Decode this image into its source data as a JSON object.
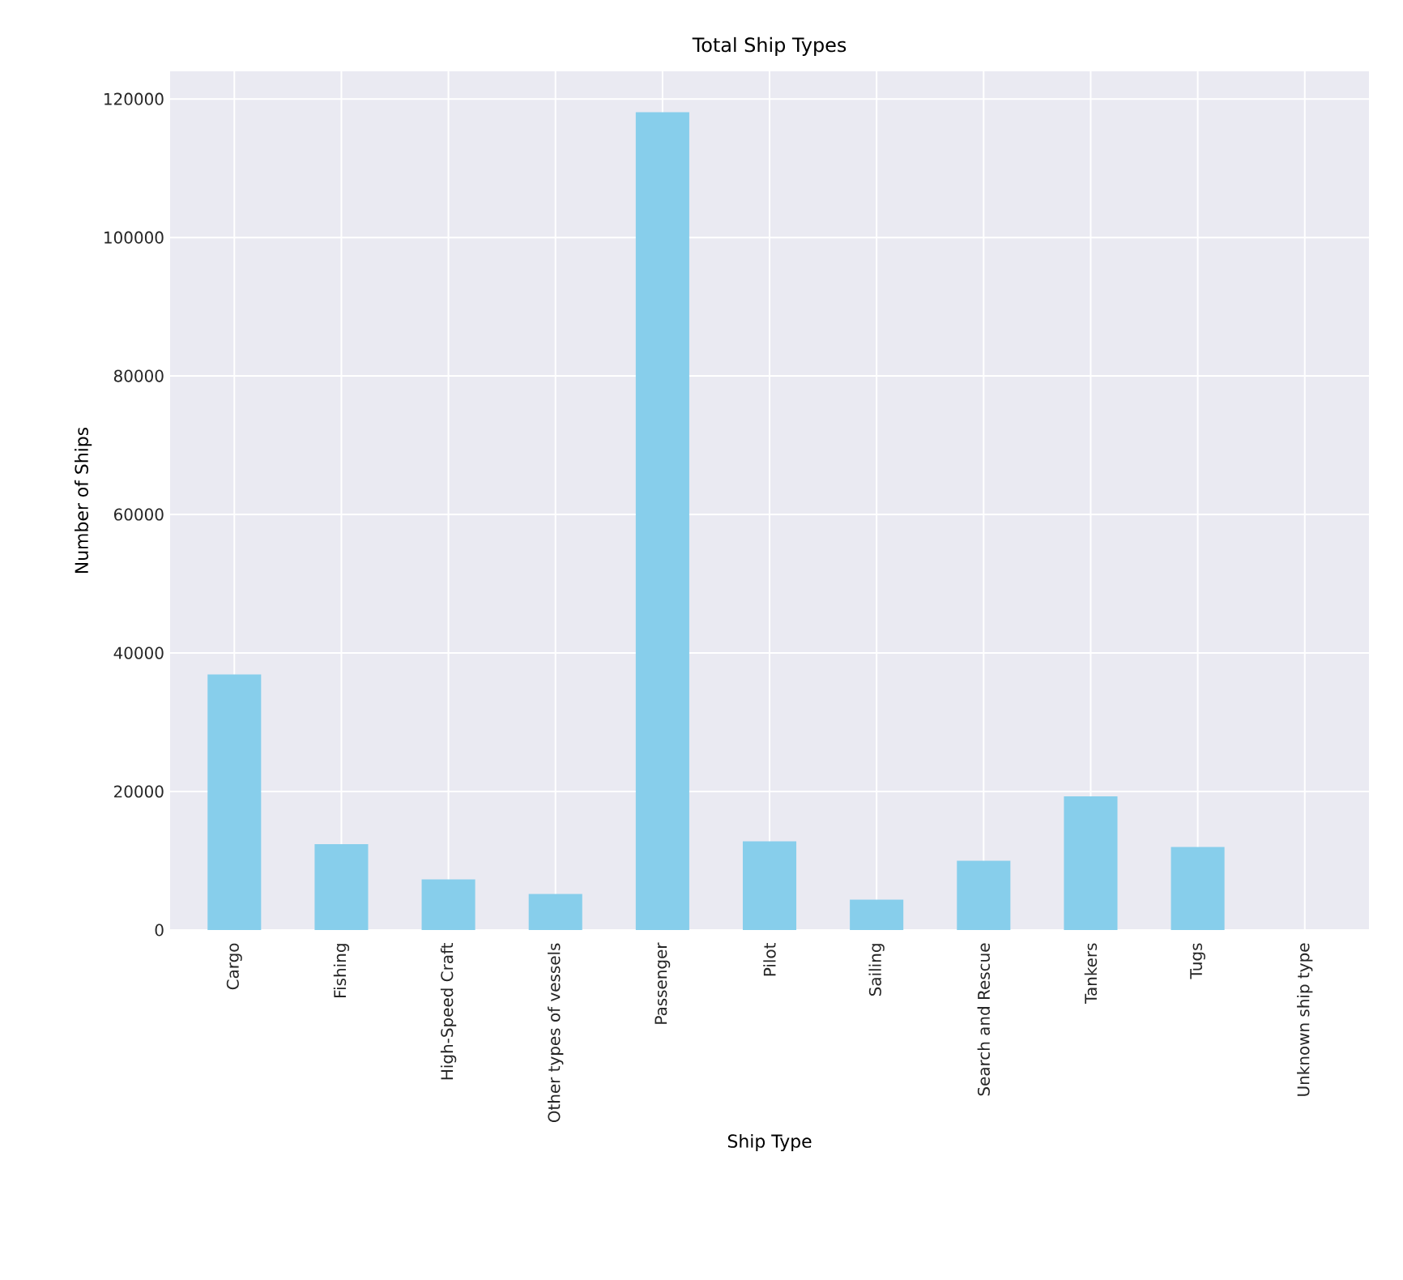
{
  "chart_data": {
    "type": "bar",
    "title": "Total Ship Types",
    "xlabel": "Ship Type",
    "ylabel": "Number of Ships",
    "categories": [
      "Cargo",
      "Fishing",
      "High-Speed Craft",
      "Other types of vessels",
      "Passenger",
      "Pilot",
      "Sailing",
      "Search and Rescue",
      "Tankers",
      "Tugs",
      "Unknown ship type"
    ],
    "values": [
      36900,
      12400,
      7300,
      5200,
      118100,
      12800,
      4400,
      10000,
      19300,
      12000,
      0
    ],
    "color": "#87ceeb",
    "ylim": [
      0,
      124000
    ],
    "yticks": [
      0,
      20000,
      40000,
      60000,
      80000,
      100000,
      120000
    ],
    "grid": true
  }
}
